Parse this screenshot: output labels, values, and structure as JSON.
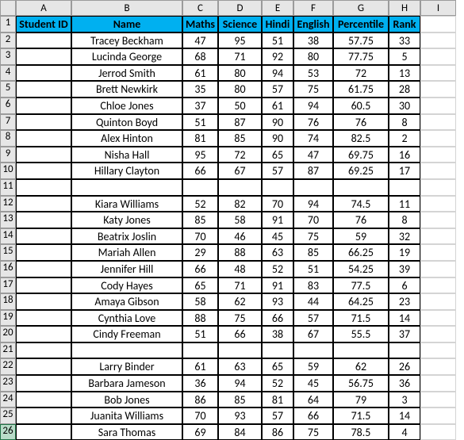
{
  "columns": [
    "A",
    "B",
    "C",
    "D",
    "E",
    "F",
    "G",
    "H",
    "I"
  ],
  "headers": {
    "A": "Student ID",
    "B": "Name",
    "C": "Maths",
    "D": "Science",
    "E": "Hindi",
    "F": "English",
    "G": "Percentile",
    "H": "Rank"
  },
  "selected_row": 26,
  "colors": {
    "header_bg": "#00b0f0",
    "col_row_header_bg": "#e6e6e6",
    "selected_row_bg": "#b8dcc8",
    "grid_border": "#c6c6c6",
    "table_border": "#000000"
  },
  "rows": [
    {
      "n": 2,
      "B": "Tracey Beckham",
      "C": "47",
      "D": "95",
      "E": "51",
      "F": "38",
      "G": "57.75",
      "H": "33"
    },
    {
      "n": 3,
      "B": "Lucinda George",
      "C": "68",
      "D": "71",
      "E": "92",
      "F": "80",
      "G": "77.75",
      "H": "5"
    },
    {
      "n": 4,
      "B": "Jerrod Smith",
      "C": "61",
      "D": "80",
      "E": "94",
      "F": "53",
      "G": "72",
      "H": "13"
    },
    {
      "n": 5,
      "B": "Brett Newkirk",
      "C": "35",
      "D": "80",
      "E": "57",
      "F": "75",
      "G": "61.75",
      "H": "28"
    },
    {
      "n": 6,
      "B": "Chloe Jones",
      "C": "37",
      "D": "50",
      "E": "61",
      "F": "94",
      "G": "60.5",
      "H": "30"
    },
    {
      "n": 7,
      "B": "Quinton Boyd",
      "C": "51",
      "D": "87",
      "E": "90",
      "F": "76",
      "G": "76",
      "H": "8"
    },
    {
      "n": 8,
      "B": "Alex Hinton",
      "C": "81",
      "D": "85",
      "E": "90",
      "F": "74",
      "G": "82.5",
      "H": "2"
    },
    {
      "n": 9,
      "B": "Nisha Hall",
      "C": "95",
      "D": "72",
      "E": "65",
      "F": "47",
      "G": "69.75",
      "H": "16"
    },
    {
      "n": 10,
      "B": "Hillary Clayton",
      "C": "66",
      "D": "67",
      "E": "57",
      "F": "87",
      "G": "69.25",
      "H": "17"
    },
    {
      "n": 11,
      "B": "",
      "C": "",
      "D": "",
      "E": "",
      "F": "",
      "G": "",
      "H": ""
    },
    {
      "n": 12,
      "B": "Kiara Williams",
      "C": "52",
      "D": "82",
      "E": "70",
      "F": "94",
      "G": "74.5",
      "H": "11"
    },
    {
      "n": 13,
      "B": "Katy Jones",
      "C": "85",
      "D": "58",
      "E": "91",
      "F": "70",
      "G": "76",
      "H": "8"
    },
    {
      "n": 14,
      "B": "Beatrix Joslin",
      "C": "70",
      "D": "46",
      "E": "45",
      "F": "75",
      "G": "59",
      "H": "32"
    },
    {
      "n": 15,
      "B": "Mariah Allen",
      "C": "29",
      "D": "88",
      "E": "63",
      "F": "85",
      "G": "66.25",
      "H": "19"
    },
    {
      "n": 16,
      "B": "Jennifer Hill",
      "C": "66",
      "D": "48",
      "E": "52",
      "F": "51",
      "G": "54.25",
      "H": "39"
    },
    {
      "n": 17,
      "B": "Cody Hayes",
      "C": "65",
      "D": "71",
      "E": "91",
      "F": "83",
      "G": "77.5",
      "H": "6"
    },
    {
      "n": 18,
      "B": "Amaya Gibson",
      "C": "58",
      "D": "62",
      "E": "93",
      "F": "44",
      "G": "64.25",
      "H": "23"
    },
    {
      "n": 19,
      "B": "Cynthia Love",
      "C": "88",
      "D": "75",
      "E": "66",
      "F": "57",
      "G": "71.5",
      "H": "14"
    },
    {
      "n": 20,
      "B": "Cindy Freeman",
      "C": "51",
      "D": "66",
      "E": "38",
      "F": "67",
      "G": "55.5",
      "H": "37"
    },
    {
      "n": 21,
      "B": "",
      "C": "",
      "D": "",
      "E": "",
      "F": "",
      "G": "",
      "H": ""
    },
    {
      "n": 22,
      "B": "Larry Binder",
      "C": "61",
      "D": "63",
      "E": "65",
      "F": "59",
      "G": "62",
      "H": "26"
    },
    {
      "n": 23,
      "B": "Barbara Jameson",
      "C": "36",
      "D": "94",
      "E": "52",
      "F": "45",
      "G": "56.75",
      "H": "36"
    },
    {
      "n": 24,
      "B": "Bob Jones",
      "C": "86",
      "D": "85",
      "E": "81",
      "F": "64",
      "G": "79",
      "H": "3"
    },
    {
      "n": 25,
      "B": "Juanita Williams",
      "C": "70",
      "D": "93",
      "E": "57",
      "F": "66",
      "G": "71.5",
      "H": "14"
    },
    {
      "n": 26,
      "B": "Sara Thomas",
      "C": "69",
      "D": "84",
      "E": "86",
      "F": "75",
      "G": "78.5",
      "H": "4"
    }
  ]
}
